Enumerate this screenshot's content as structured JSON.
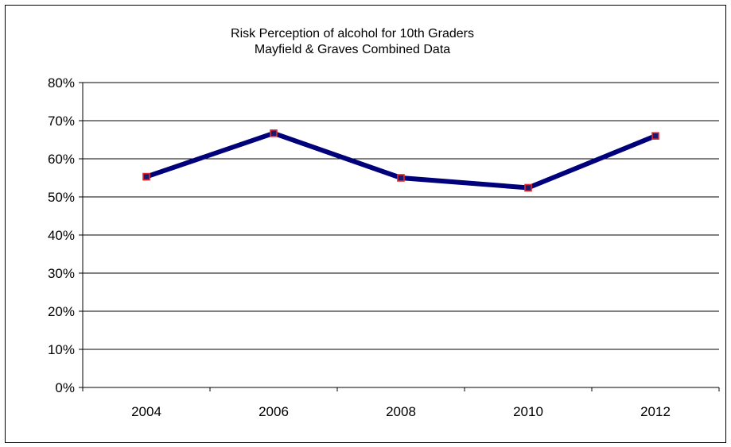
{
  "chart_data": {
    "type": "line",
    "title_line1": "Risk Perception of alcohol for 10th Graders",
    "title_line2": "Mayfield & Graves Combined Data",
    "xlabel": "",
    "ylabel": "",
    "categories": [
      "2004",
      "2006",
      "2008",
      "2010",
      "2012"
    ],
    "series": [
      {
        "values": [
          0.553,
          0.667,
          0.55,
          0.524,
          0.66
        ]
      }
    ],
    "ylim": [
      0,
      0.8
    ],
    "yticks": [
      0,
      0.1,
      0.2,
      0.3,
      0.4,
      0.5,
      0.6,
      0.7,
      0.8
    ],
    "ytick_labels": [
      "0%",
      "10%",
      "20%",
      "30%",
      "40%",
      "50%",
      "60%",
      "70%",
      "80%"
    ],
    "grid": true,
    "legend": "none",
    "colors": {
      "line": "#00007A",
      "marker_fill": "#1A1A6E",
      "marker_edge": "#E8262E",
      "grid": "#000000"
    }
  }
}
